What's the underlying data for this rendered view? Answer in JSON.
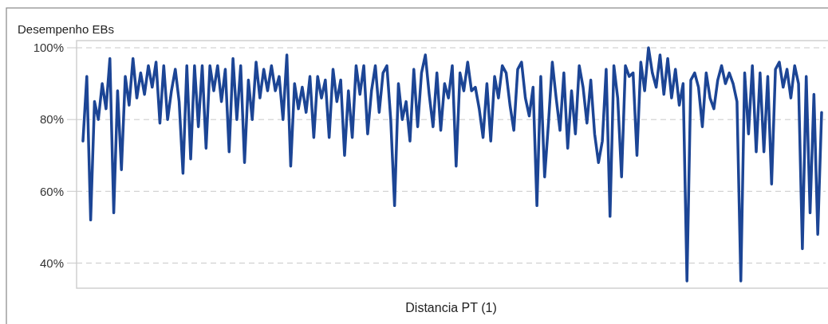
{
  "chart_data": {
    "type": "line",
    "title": "Desempenho EBs",
    "xlabel": "Distancia PT (1)",
    "ylim": [
      33,
      102
    ],
    "yticks": [
      {
        "value": 40,
        "label": "40%"
      },
      {
        "value": 60,
        "label": "60%"
      },
      {
        "value": 80,
        "label": "80%"
      },
      {
        "value": 100,
        "label": "100%"
      }
    ],
    "grid": "y",
    "marker": "none",
    "line_style": "solid",
    "categories": [
      null,
      null,
      null,
      null,
      null,
      null,
      null,
      null,
      null,
      null,
      null,
      null,
      null,
      null,
      null,
      null,
      null,
      null,
      null,
      null,
      null,
      null,
      null,
      null,
      null,
      null,
      null,
      null,
      null,
      null,
      null,
      null,
      null,
      null,
      null,
      null,
      null,
      null,
      null,
      null,
      null,
      null,
      null,
      null,
      null,
      null,
      null,
      null,
      null,
      null,
      null,
      null,
      null,
      null,
      null,
      null,
      null,
      null,
      null,
      null,
      null,
      null,
      null,
      null,
      null,
      null,
      null,
      null,
      null,
      null,
      null,
      null,
      null,
      null,
      null,
      null,
      null,
      null,
      null,
      null,
      null,
      null,
      null,
      null,
      null,
      null,
      null,
      null,
      null,
      null,
      null,
      null,
      null,
      null,
      null,
      null,
      null,
      null,
      null,
      null,
      null,
      null,
      null,
      null,
      null,
      null,
      null,
      null,
      null,
      null,
      null,
      null,
      null,
      null,
      null,
      null,
      null,
      null,
      null,
      null,
      null,
      null,
      null,
      null,
      null,
      null,
      null,
      null,
      null,
      null,
      null,
      null,
      null,
      null,
      null,
      null,
      null,
      null,
      null,
      null,
      null,
      null,
      null,
      null,
      null,
      null,
      null,
      null,
      null,
      null,
      null,
      null,
      null,
      null,
      null,
      null,
      null,
      null,
      null,
      null,
      null,
      null,
      null,
      null,
      null,
      null,
      null,
      null,
      null,
      null,
      null,
      null,
      null,
      null,
      null,
      null,
      null,
      null,
      null,
      null,
      null,
      null,
      null,
      null,
      null,
      null,
      null,
      null,
      null,
      null,
      null,
      null,
      null
    ],
    "series": [
      {
        "color": "#1c4595",
        "values": [
          74,
          92,
          52,
          85,
          80,
          90,
          83,
          97,
          54,
          88,
          66,
          92,
          84,
          97,
          86,
          93,
          87,
          95,
          89,
          96,
          79,
          95,
          80,
          88,
          94,
          85,
          65,
          95,
          69,
          95,
          78,
          95,
          72,
          95,
          88,
          95,
          85,
          94,
          71,
          97,
          80,
          95,
          68,
          91,
          80,
          96,
          86,
          94,
          88,
          95,
          88,
          92,
          80,
          98,
          67,
          90,
          83,
          89,
          82,
          92,
          75,
          92,
          86,
          91,
          75,
          94,
          85,
          91,
          70,
          88,
          75,
          95,
          87,
          95,
          76,
          88,
          95,
          82,
          93,
          95,
          80,
          56,
          90,
          80,
          85,
          74,
          94,
          78,
          93,
          98,
          87,
          78,
          93,
          77,
          90,
          86,
          95,
          67,
          93,
          88,
          96,
          88,
          89,
          83,
          75,
          90,
          74,
          92,
          86,
          95,
          93,
          84,
          77,
          94,
          96,
          86,
          81,
          89,
          56,
          92,
          64,
          79,
          96,
          86,
          77,
          93,
          72,
          88,
          76,
          95,
          89,
          79,
          91,
          76,
          68,
          74,
          94,
          53,
          95,
          86,
          64,
          95,
          92,
          93,
          70,
          96,
          88,
          100,
          93,
          89,
          98,
          87,
          97,
          86,
          94,
          84,
          90,
          35,
          91,
          93,
          89,
          78,
          93,
          86,
          83,
          91,
          95,
          90,
          93,
          90,
          85,
          35,
          93,
          76,
          95,
          71,
          93,
          71,
          92,
          62,
          94,
          96,
          89,
          94,
          86,
          95,
          90,
          44,
          92,
          54,
          87,
          48,
          82
        ]
      }
    ]
  }
}
